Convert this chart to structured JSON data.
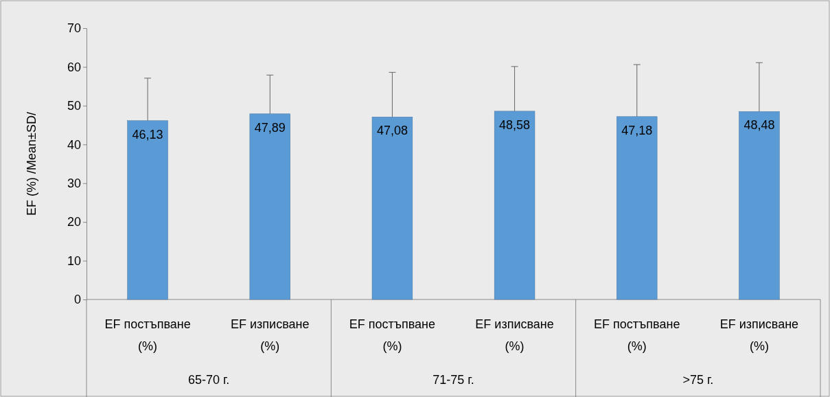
{
  "chart_data": {
    "type": "bar",
    "ylabel": "EF (%) /Mean±SD/",
    "categories": [
      "EF постъпване (%)",
      "EF изписване (%)",
      "EF постъпване (%)",
      "EF изписване (%)",
      "EF постъпване (%)",
      "EF изписване (%)"
    ],
    "values": [
      46.13,
      47.89,
      47.08,
      48.58,
      47.18,
      48.48
    ],
    "value_labels": [
      "46,13",
      "47,89",
      "47,08",
      "48,58",
      "47,18",
      "48,48"
    ],
    "errors": [
      [
        46.13,
        57.1
      ],
      [
        47.89,
        57.9
      ],
      [
        47.08,
        58.6
      ],
      [
        48.58,
        60.1
      ],
      [
        47.18,
        60.6
      ],
      [
        48.48,
        61.1
      ]
    ],
    "color": "#5b9bd5",
    "ylim": [
      0,
      70
    ],
    "yticks": [
      0,
      10,
      20,
      30,
      40,
      50,
      60,
      70
    ],
    "annotations": [
      "65-70 г.",
      "71-75 г.",
      ">75 г."
    ]
  }
}
